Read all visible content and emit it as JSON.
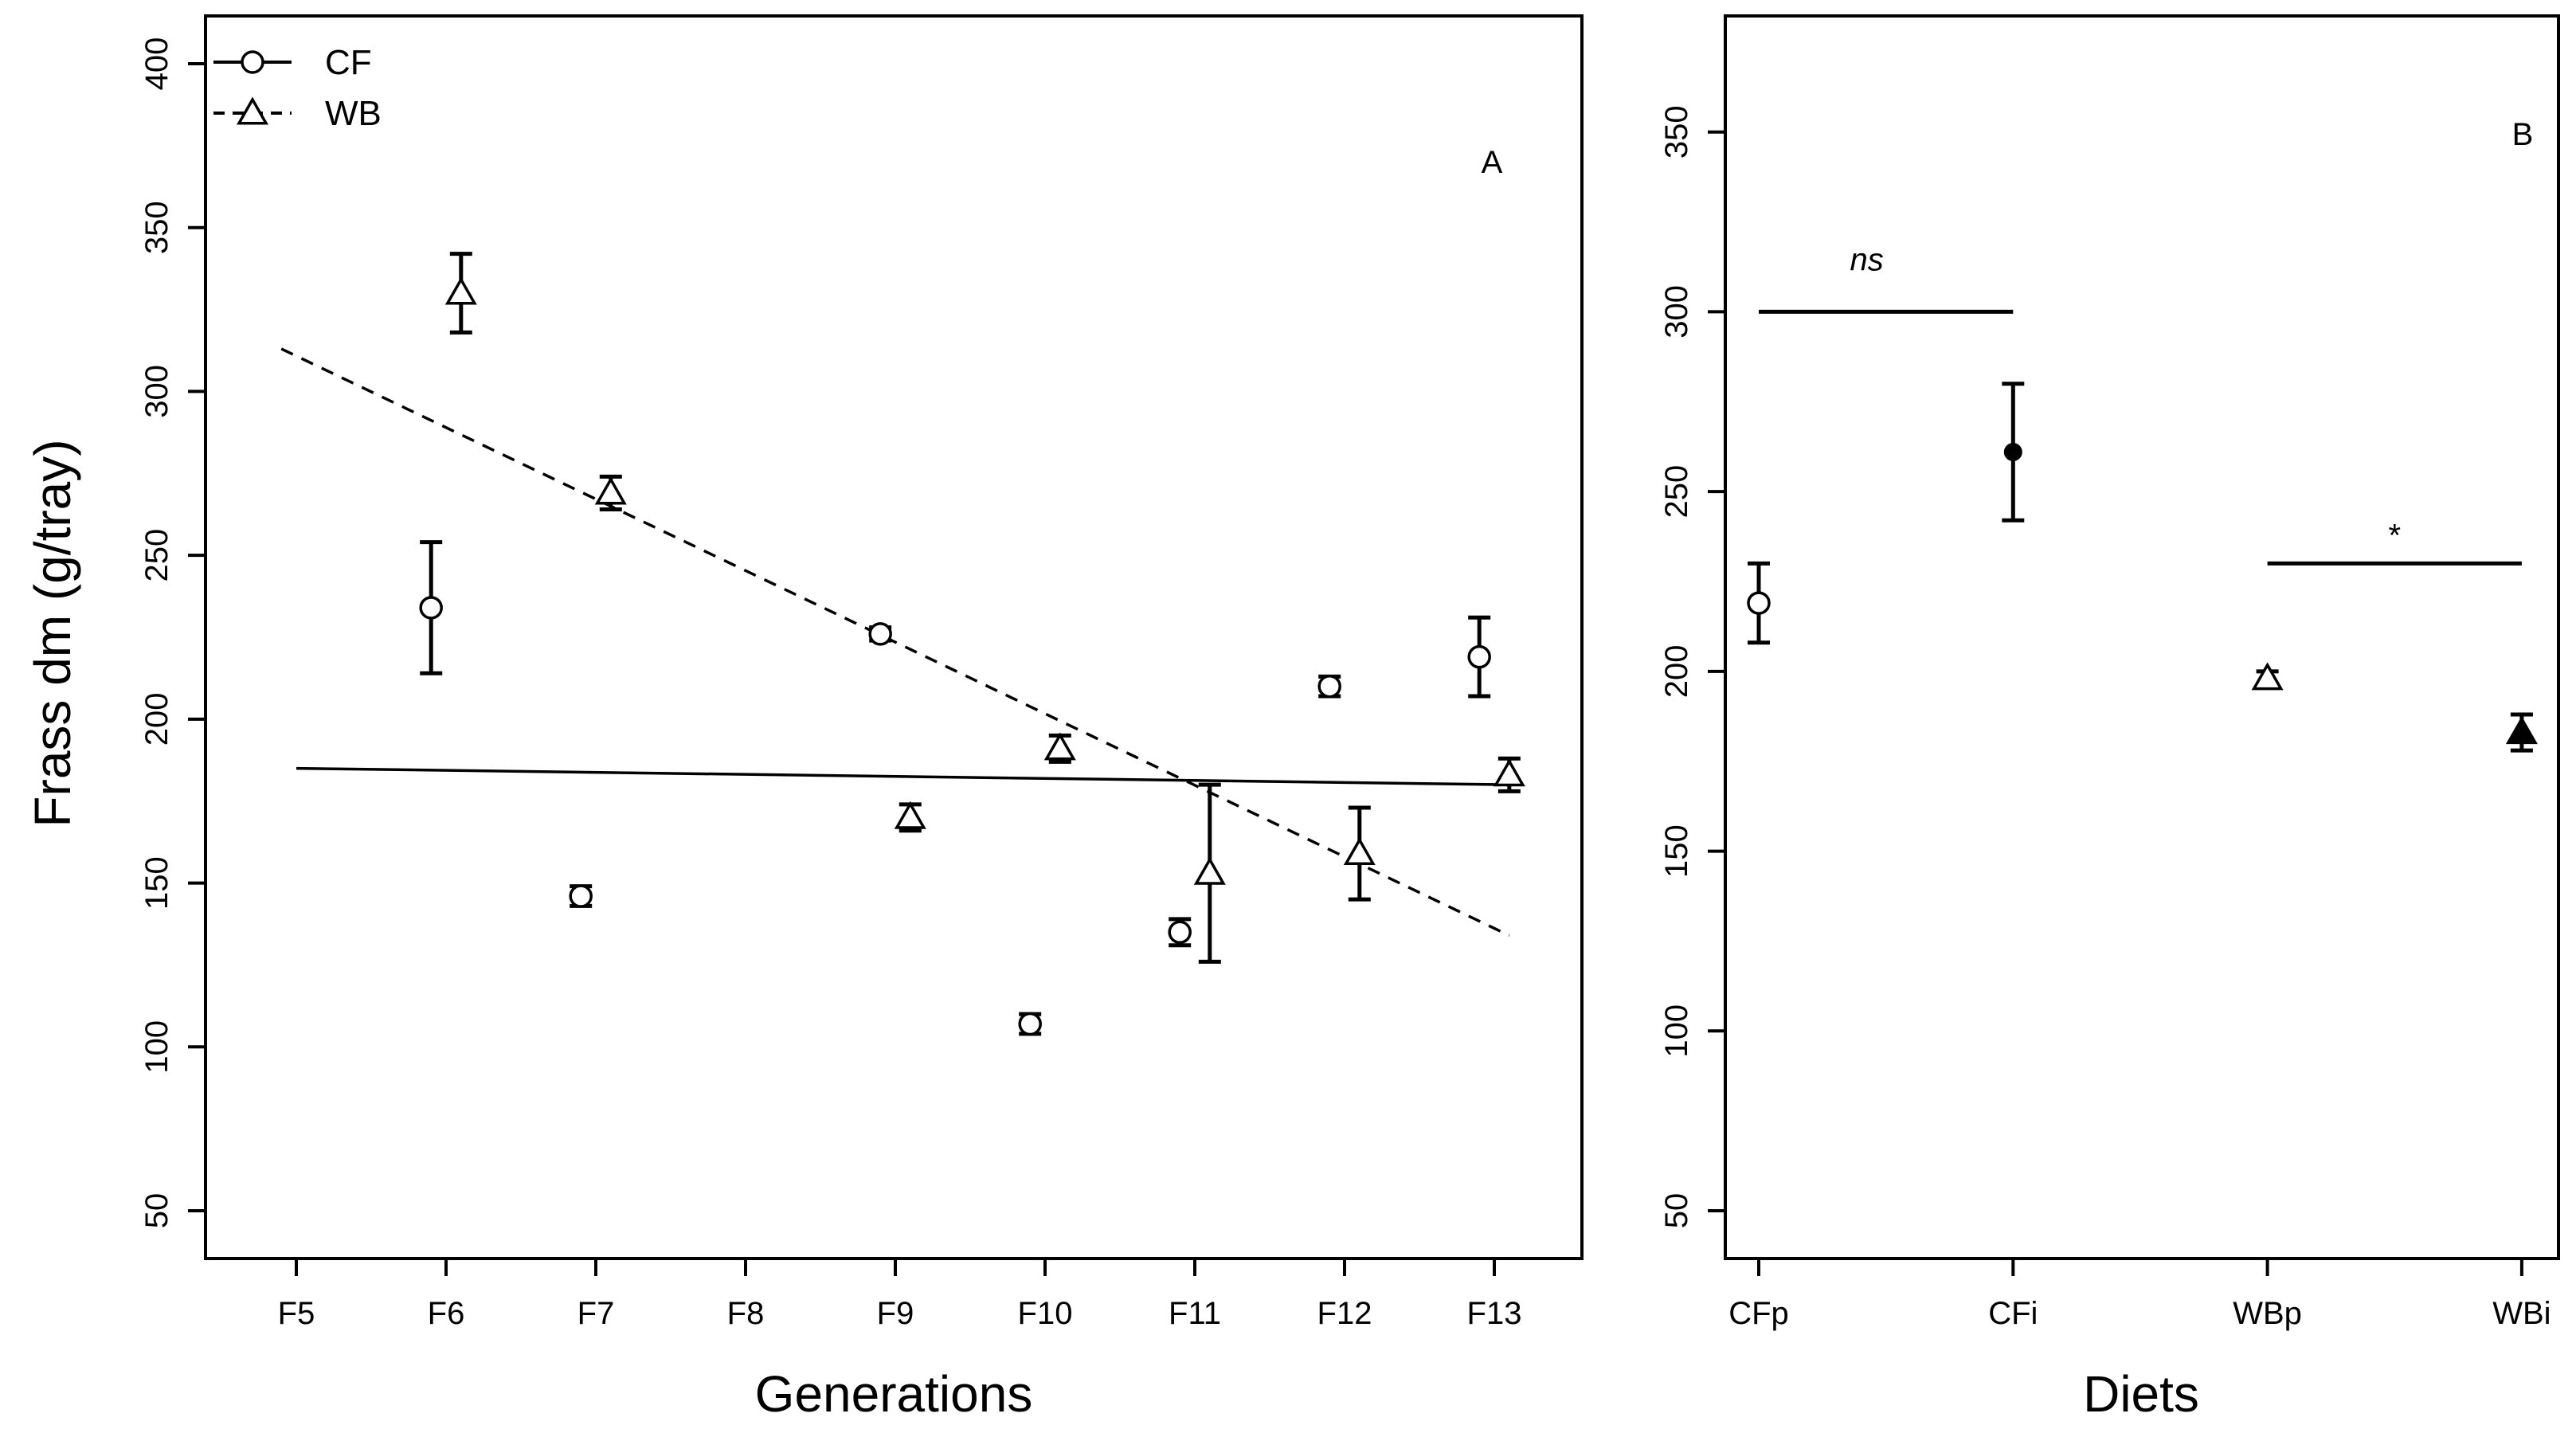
{
  "chart_data": [
    {
      "panel": "A",
      "type": "scatter",
      "ylabel": "Frass dm (g/tray)",
      "xlabel": "Generations",
      "categories": [
        "F5",
        "F6",
        "F7",
        "F8",
        "F9",
        "F10",
        "F11",
        "F12",
        "F13"
      ],
      "yticks": [
        "50",
        "100",
        "150",
        "200",
        "250",
        "300",
        "350",
        "400"
      ],
      "ylim": [
        40,
        405
      ],
      "legend": [
        {
          "name": "CF",
          "marker": "circle",
          "line": "solid"
        },
        {
          "name": "WB",
          "marker": "triangle",
          "line": "dashed"
        }
      ],
      "legend_position": "top-left",
      "series": [
        {
          "name": "CF",
          "marker": "circle",
          "offset": -0.1,
          "points": [
            {
              "x": "F6",
              "y": 234,
              "err": 20
            },
            {
              "x": "F7",
              "y": 146,
              "err": 3
            },
            {
              "x": "F9",
              "y": 226,
              "err": 2
            },
            {
              "x": "F10",
              "y": 107,
              "err": 3
            },
            {
              "x": "F11",
              "y": 135,
              "err": 4
            },
            {
              "x": "F12",
              "y": 210,
              "err": 3
            },
            {
              "x": "F13",
              "y": 219,
              "err": 12
            }
          ],
          "trend": {
            "style": "solid",
            "from": {
              "x": 0,
              "y": 185
            },
            "to": {
              "x": 8.1,
              "y": 180
            }
          }
        },
        {
          "name": "WB",
          "marker": "triangle",
          "offset": 0.1,
          "points": [
            {
              "x": "F6",
              "y": 330,
              "err": 12
            },
            {
              "x": "F7",
              "y": 269,
              "err": 5
            },
            {
              "x": "F9",
              "y": 170,
              "err": 4
            },
            {
              "x": "F10",
              "y": 191,
              "err": 4
            },
            {
              "x": "F11",
              "y": 153,
              "err": 27
            },
            {
              "x": "F12",
              "y": 159,
              "err": 14
            },
            {
              "x": "F13",
              "y": 183,
              "err": 5
            }
          ],
          "trend": {
            "style": "dashed",
            "from": {
              "x": -0.1,
              "y": 313
            },
            "to": {
              "x": 8.1,
              "y": 134
            }
          }
        }
      ]
    },
    {
      "panel": "B",
      "type": "scatter",
      "ylabel": "",
      "xlabel": "Diets",
      "categories": [
        "CFp",
        "CFi",
        "WBp",
        "WBi"
      ],
      "yticks": [
        "50",
        "100",
        "150",
        "200",
        "250",
        "300",
        "350"
      ],
      "ylim": [
        40,
        385
      ],
      "points": [
        {
          "x": "CFp",
          "y": 219,
          "err": 11,
          "marker": "circle",
          "filled": false
        },
        {
          "x": "CFi",
          "y": 261,
          "err": 19,
          "marker": "circle",
          "filled": true
        },
        {
          "x": "WBp",
          "y": 198,
          "err": 2,
          "marker": "triangle",
          "filled": false
        },
        {
          "x": "WBi",
          "y": 183,
          "err": 5,
          "marker": "triangle",
          "filled": true
        }
      ],
      "annotations": [
        {
          "text": "ns",
          "from": "CFp",
          "to": "CFi",
          "y": 300,
          "italic": true
        },
        {
          "text": "*",
          "from": "WBp",
          "to": "WBi",
          "y": 230,
          "italic": false
        }
      ]
    }
  ]
}
